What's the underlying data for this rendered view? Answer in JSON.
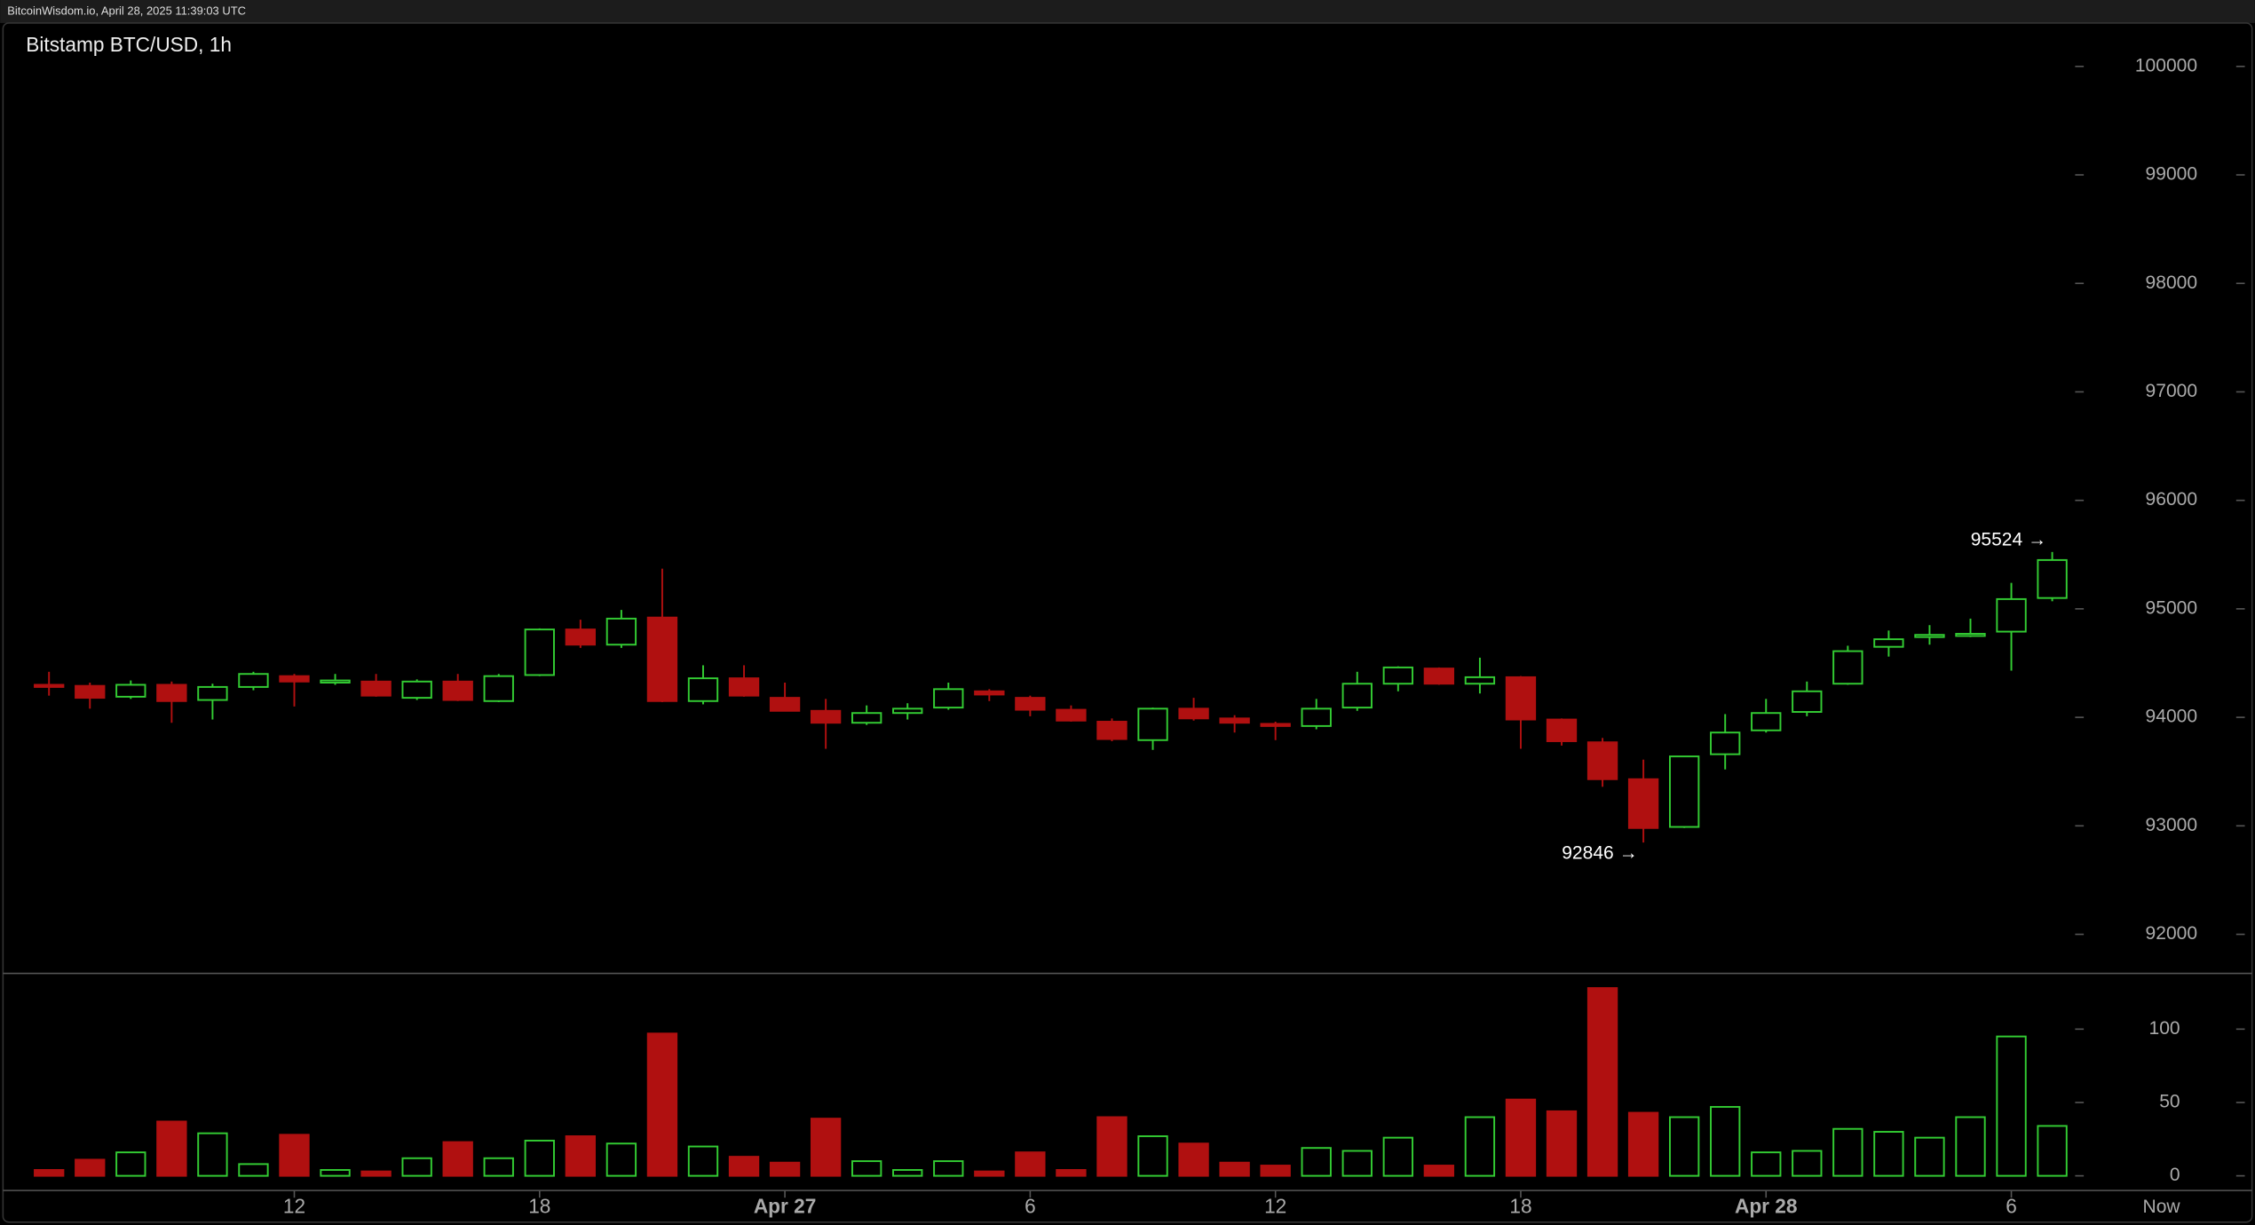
{
  "header": {
    "source": "BitcoinWisdom.io, April 28, 2025 11:39:03 UTC"
  },
  "chart_data": [
    {
      "type": "candlestick",
      "title": "Bitstamp BTC/USD, 1h",
      "open": [
        94300,
        94290,
        94190,
        94300,
        94160,
        94280,
        94380,
        94320,
        94330,
        94180,
        94330,
        94150,
        94390,
        94810,
        94670,
        94920,
        94150,
        94360,
        94180,
        94060,
        93950,
        94040,
        94090,
        94240,
        94180,
        94070,
        93960,
        93790,
        94080,
        93990,
        93940,
        93920,
        94090,
        94310,
        94450,
        94310,
        94370,
        93980,
        93770,
        93430,
        92990,
        93660,
        93880,
        94050,
        94310,
        94650,
        94740,
        94760,
        94790,
        95100
      ],
      "high": [
        94420,
        94320,
        94340,
        94330,
        94310,
        94420,
        94400,
        94400,
        94400,
        94350,
        94400,
        94400,
        94820,
        94900,
        94990,
        95370,
        94480,
        94480,
        94320,
        94170,
        94110,
        94130,
        94320,
        94260,
        94200,
        94110,
        93990,
        94090,
        94180,
        94020,
        93960,
        94170,
        94420,
        94470,
        94460,
        94550,
        94380,
        93990,
        93810,
        93610,
        93640,
        94030,
        94170,
        94330,
        94660,
        94800,
        94850,
        94910,
        95240,
        95524
      ],
      "low": [
        94200,
        94080,
        94170,
        93950,
        93980,
        94250,
        94100,
        94300,
        94190,
        94160,
        94150,
        94140,
        94380,
        94640,
        94640,
        94140,
        94120,
        94190,
        94060,
        93710,
        93930,
        93980,
        94070,
        94150,
        94010,
        93960,
        93780,
        93700,
        93970,
        93860,
        93790,
        93890,
        94060,
        94240,
        94300,
        94220,
        93710,
        93740,
        93360,
        92846,
        92980,
        93520,
        93860,
        94010,
        94300,
        94560,
        94670,
        94740,
        94430,
        95070
      ],
      "close": [
        94280,
        94180,
        94300,
        94150,
        94280,
        94400,
        94330,
        94340,
        94200,
        94330,
        94160,
        94380,
        94810,
        94670,
        94910,
        94150,
        94360,
        94200,
        94060,
        93950,
        94040,
        94080,
        94260,
        94210,
        94070,
        93970,
        93800,
        94080,
        93990,
        93950,
        93920,
        94080,
        94310,
        94460,
        94310,
        94370,
        93980,
        93780,
        93430,
        92980,
        93640,
        93860,
        94040,
        94240,
        94610,
        94720,
        94760,
        94770,
        95090,
        95450
      ],
      "ylim": [
        91640,
        100400
      ],
      "yticks": [
        92000,
        93000,
        94000,
        95000,
        96000,
        97000,
        98000,
        99000,
        100000
      ],
      "up_color": "#33cc33",
      "down_color": "#b01010",
      "annotations": [
        {
          "label": "95524 →",
          "value": 95524
        },
        {
          "label": "92846 →",
          "value": 92846
        }
      ]
    },
    {
      "type": "bar",
      "categories": [
        null,
        null,
        null,
        null,
        null,
        null,
        "12",
        null,
        null,
        null,
        null,
        null,
        "18",
        null,
        null,
        null,
        null,
        null,
        "Apr 27",
        null,
        null,
        null,
        null,
        null,
        "6",
        null,
        null,
        null,
        null,
        null,
        "12",
        null,
        null,
        null,
        null,
        null,
        "18",
        null,
        null,
        null,
        null,
        null,
        "Apr 28",
        null,
        null,
        null,
        null,
        null,
        "6",
        null
      ],
      "values": [
        4,
        11,
        16,
        37,
        29,
        8,
        28,
        4,
        3,
        12,
        23,
        12,
        24,
        27,
        22,
        97,
        20,
        13,
        9,
        39,
        10,
        4,
        10,
        3,
        16,
        4,
        40,
        27,
        22,
        9,
        7,
        19,
        17,
        26,
        7,
        40,
        52,
        44,
        128,
        43,
        40,
        47,
        16,
        17,
        32,
        30,
        26,
        40,
        95,
        34
      ],
      "ylim": [
        -10,
        138
      ],
      "yticks": [
        0,
        50,
        100
      ],
      "now_label": "Now"
    }
  ]
}
